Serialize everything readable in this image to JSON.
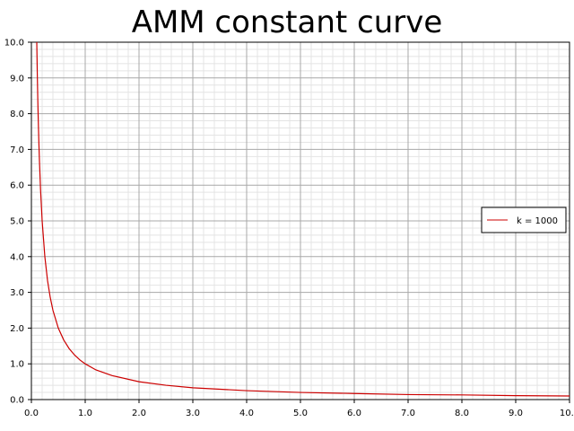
{
  "chart_data": {
    "type": "line",
    "title": "AMM constant curve",
    "xlabel": "",
    "ylabel": "",
    "xlim": [
      0,
      10
    ],
    "ylim": [
      0,
      10
    ],
    "grid": true,
    "minor_grid": true,
    "legend_position": "right",
    "x_ticks": [
      "0.0",
      "1.0",
      "2.0",
      "3.0",
      "4.0",
      "5.0",
      "6.0",
      "7.0",
      "8.0",
      "9.0",
      "10.0"
    ],
    "y_ticks": [
      "0.0",
      "1.0",
      "2.0",
      "3.0",
      "4.0",
      "5.0",
      "6.0",
      "7.0",
      "8.0",
      "9.0",
      "10.0"
    ],
    "series": [
      {
        "name": "k = 1000",
        "color": "#cc0000",
        "x": [
          0.1,
          0.11,
          0.12,
          0.13,
          0.14,
          0.15,
          0.17,
          0.2,
          0.25,
          0.3,
          0.35,
          0.4,
          0.5,
          0.6,
          0.7,
          0.8,
          0.9,
          1.0,
          1.2,
          1.5,
          2.0,
          2.5,
          3.0,
          4.0,
          5.0,
          6.0,
          7.0,
          8.0,
          9.0,
          10.0
        ],
        "y": [
          10.0,
          9.09,
          8.33,
          7.69,
          7.14,
          6.67,
          5.88,
          5.0,
          4.0,
          3.33,
          2.86,
          2.5,
          2.0,
          1.67,
          1.43,
          1.25,
          1.11,
          1.0,
          0.83,
          0.67,
          0.5,
          0.4,
          0.33,
          0.25,
          0.2,
          0.17,
          0.14,
          0.13,
          0.11,
          0.1
        ]
      }
    ]
  }
}
